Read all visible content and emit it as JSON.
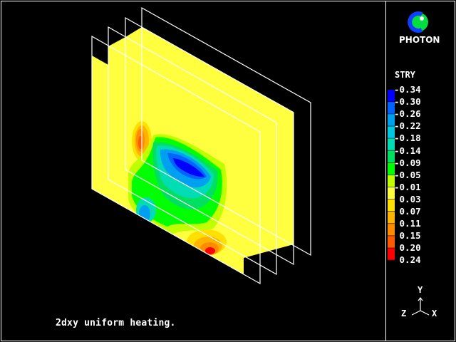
{
  "chart_data": {
    "type": "contour-3d-slices",
    "variable": "STRY",
    "legend": {
      "title": "STRY",
      "levels": [
        "-0.34",
        "-0.30",
        "-0.26",
        "-0.22",
        "-0.18",
        "-0.14",
        "-0.09",
        "-0.05",
        "-0.01",
        "0.03",
        "0.07",
        "0.11",
        "0.15",
        "0.20",
        "0.24"
      ],
      "colors": [
        "#0000ff",
        "#0064ff",
        "#00a0f0",
        "#00c8e0",
        "#00dcb4",
        "#00e060",
        "#00ff00",
        "#c0ff00",
        "#ffff40",
        "#ffe000",
        "#ffb400",
        "#ff8c00",
        "#ff5a00",
        "#ff0000"
      ]
    },
    "planes": 4,
    "caption": "2dxy uniform heating."
  },
  "logo": {
    "text": "PHOTON"
  },
  "axes": {
    "x": "X",
    "y": "Y",
    "z": "Z"
  }
}
